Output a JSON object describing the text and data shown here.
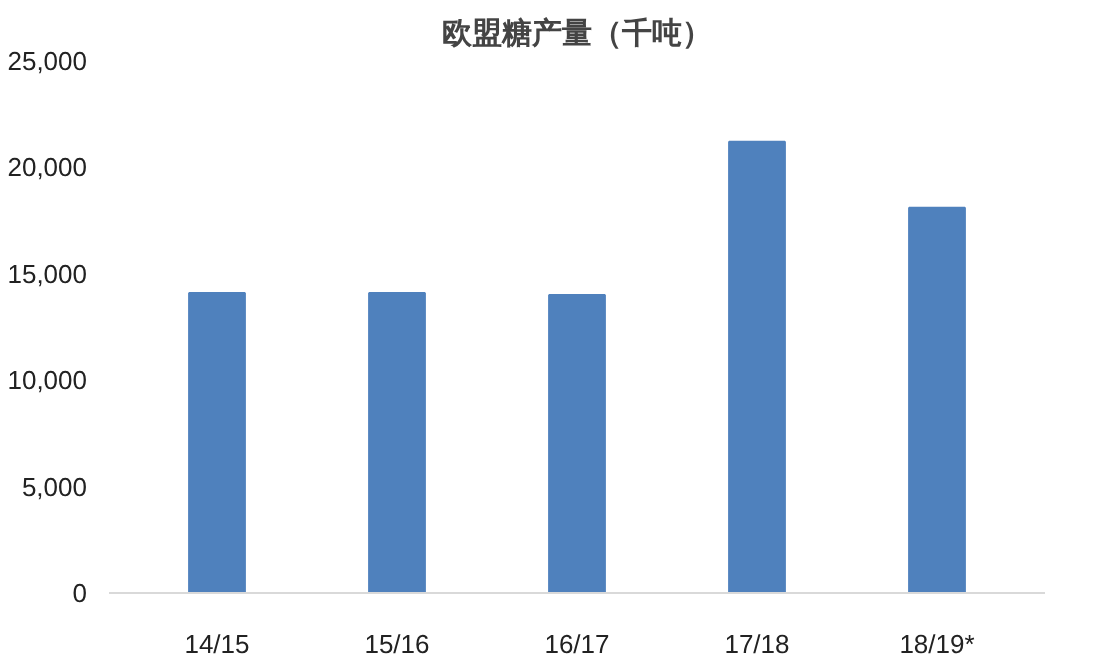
{
  "chart_data": {
    "type": "bar",
    "title": "欧盟糖产量（千吨）",
    "categories": [
      "14/15",
      "15/16",
      "16/17",
      "17/18",
      "18/19*"
    ],
    "values": [
      14100,
      14100,
      14000,
      21200,
      18100
    ],
    "color": "#4f81bd",
    "ylim": [
      0,
      25000
    ],
    "yticks": [
      {
        "value": 0,
        "label": "0"
      },
      {
        "value": 5000,
        "label": "5,000"
      },
      {
        "value": 10000,
        "label": "10,000"
      },
      {
        "value": 15000,
        "label": "15,000"
      },
      {
        "value": 20000,
        "label": "20,000"
      },
      {
        "value": 25000,
        "label": "25,000"
      }
    ],
    "grid": false
  }
}
